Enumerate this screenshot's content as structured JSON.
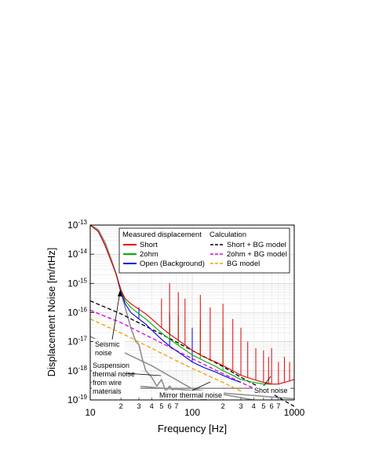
{
  "chart_data": {
    "type": "line",
    "xlabel": "Frequency [Hz]",
    "ylabel": "Displacement Noise [m/rtHz]",
    "x_scale": "log",
    "y_scale": "log",
    "xlim": [
      10,
      1000
    ],
    "ylim": [
      1e-19,
      1e-13
    ],
    "grid": true,
    "x_ticks_major": [
      {
        "value": 10,
        "label": "10"
      },
      {
        "value": 100,
        "label": "100"
      },
      {
        "value": 1000,
        "label": "1000"
      }
    ],
    "x_ticks_minor": [
      {
        "value": 20,
        "label": "2"
      },
      {
        "value": 30,
        "label": "3"
      },
      {
        "value": 40,
        "label": "4"
      },
      {
        "value": 50,
        "label": "5"
      },
      {
        "value": 60,
        "label": "6"
      },
      {
        "value": 70,
        "label": "7"
      },
      {
        "value": 200,
        "label": "2"
      },
      {
        "value": 300,
        "label": "3"
      },
      {
        "value": 400,
        "label": "4"
      },
      {
        "value": 500,
        "label": "5"
      },
      {
        "value": 600,
        "label": "6"
      },
      {
        "value": 700,
        "label": "7"
      }
    ],
    "y_ticks": [
      {
        "exp": -19,
        "base": "10",
        "sup": "-19"
      },
      {
        "exp": -18,
        "base": "10",
        "sup": "-18"
      },
      {
        "exp": -17,
        "base": "10",
        "sup": "-17"
      },
      {
        "exp": -16,
        "base": "10",
        "sup": "-16"
      },
      {
        "exp": -15,
        "base": "10",
        "sup": "-15"
      },
      {
        "exp": -14,
        "base": "10",
        "sup": "-14"
      },
      {
        "exp": -13,
        "base": "10",
        "sup": "-13"
      }
    ],
    "legend": {
      "placement": "top-right",
      "measured_title": "Measured displacement",
      "calc_title": "Calculation",
      "measured": [
        {
          "name": "Short",
          "color": "#e00000",
          "style": "solid"
        },
        {
          "name": "2ohm",
          "color": "#00b000",
          "style": "solid"
        },
        {
          "name": "Open (Background)",
          "color": "#0000e0",
          "style": "solid"
        }
      ],
      "calc": [
        {
          "name": "Short + BG model",
          "color": "#000000",
          "style": "dashed"
        },
        {
          "name": "2ohm + BG model",
          "color": "#e000e0",
          "style": "dashed"
        },
        {
          "name": "BG model",
          "color": "#f0a000",
          "style": "dashed"
        }
      ]
    },
    "series": [
      {
        "name": "Short",
        "kind": "measured",
        "color": "#e00000",
        "x": [
          10,
          12,
          14,
          16,
          18,
          20,
          22,
          25,
          30,
          35,
          40,
          50,
          60,
          80,
          100,
          130,
          170,
          200,
          250,
          300,
          400,
          500,
          600,
          700,
          800,
          1000
        ],
        "y": [
          1e-13,
          6e-14,
          2e-14,
          6e-15,
          2e-15,
          6e-16,
          3e-16,
          2e-16,
          1.3e-16,
          9e-17,
          6e-17,
          3e-17,
          1.8e-17,
          9e-18,
          5e-18,
          3e-18,
          2e-18,
          1.5e-18,
          1e-18,
          7e-19,
          5e-19,
          4e-19,
          3.5e-19,
          3.5e-19,
          4e-19,
          5e-19
        ],
        "peaks": [
          {
            "x": 50,
            "y": 3e-16
          },
          {
            "x": 60,
            "y": 1e-15
          },
          {
            "x": 73,
            "y": 5e-16
          },
          {
            "x": 85,
            "y": 3e-16
          },
          {
            "x": 120,
            "y": 4e-16
          },
          {
            "x": 150,
            "y": 1.5e-16
          },
          {
            "x": 200,
            "y": 2e-16
          },
          {
            "x": 250,
            "y": 6e-17
          },
          {
            "x": 300,
            "y": 3e-17
          },
          {
            "x": 350,
            "y": 1e-17
          },
          {
            "x": 420,
            "y": 6e-18
          },
          {
            "x": 500,
            "y": 5e-18
          },
          {
            "x": 560,
            "y": 3e-18
          },
          {
            "x": 600,
            "y": 6e-18
          },
          {
            "x": 700,
            "y": 2e-18
          },
          {
            "x": 800,
            "y": 3e-18
          },
          {
            "x": 900,
            "y": 2e-18
          }
        ]
      },
      {
        "name": "2ohm",
        "kind": "measured",
        "color": "#00b000",
        "x": [
          10,
          12,
          14,
          16,
          18,
          20,
          22,
          25,
          30,
          35,
          40,
          50,
          60,
          80,
          100,
          130,
          170,
          200,
          250,
          300,
          400,
          500,
          600
        ],
        "y": [
          1e-13,
          6e-14,
          2e-14,
          6e-15,
          2e-15,
          6e-16,
          2.5e-16,
          1.5e-16,
          9e-17,
          6e-17,
          4e-17,
          2e-17,
          1.2e-17,
          6e-18,
          3.5e-18,
          2.2e-18,
          1.4e-18,
          1e-18,
          7e-19,
          5e-19,
          4e-19,
          3.5e-19,
          3.5e-19
        ],
        "peaks": [
          {
            "x": 60,
            "y": 1e-16
          },
          {
            "x": 73,
            "y": 8e-17
          },
          {
            "x": 120,
            "y": 6e-17
          },
          {
            "x": 200,
            "y": 3e-17
          }
        ]
      },
      {
        "name": "Open (Background)",
        "kind": "measured",
        "color": "#0000e0",
        "x": [
          10,
          12,
          14,
          16,
          18,
          20,
          22,
          25,
          30,
          35,
          40,
          50,
          60,
          80,
          100,
          130,
          170,
          200,
          250,
          300
        ],
        "y": [
          1e-13,
          6e-14,
          2e-14,
          6e-15,
          2e-15,
          5e-16,
          2e-16,
          1e-16,
          6e-17,
          4e-17,
          2.5e-17,
          1.2e-17,
          7e-18,
          3.5e-18,
          2e-18,
          1.3e-18,
          9e-19,
          7e-19,
          5e-19,
          4e-19
        ],
        "peaks": [
          {
            "x": 30,
            "y": 1.5e-16
          },
          {
            "x": 60,
            "y": 8e-17
          },
          {
            "x": 100,
            "y": 3e-17
          }
        ]
      },
      {
        "name": "Short + BG model",
        "kind": "calc",
        "color": "#000000",
        "dash": "5,3",
        "x": [
          10,
          20,
          50,
          100,
          200,
          300,
          400,
          500,
          1000
        ],
        "y": [
          2.5e-16,
          9e-17,
          1.8e-17,
          5e-18,
          1.4e-18,
          6e-19,
          3.5e-19,
          2.4e-19,
          6e-20
        ]
      },
      {
        "name": "2ohm + BG model",
        "kind": "calc",
        "color": "#e000e0",
        "dash": "5,3",
        "x": [
          10,
          20,
          50,
          100,
          200,
          300,
          400
        ],
        "y": [
          1.2e-16,
          4.5e-17,
          9e-18,
          2.6e-18,
          8e-19,
          4e-19,
          2.5e-19
        ]
      },
      {
        "name": "BG model",
        "kind": "calc",
        "color": "#f0a000",
        "dash": "5,3",
        "x": [
          10,
          20,
          50,
          100,
          200,
          300
        ],
        "y": [
          6e-17,
          2e-17,
          4e-18,
          1.2e-18,
          4e-19,
          2e-19
        ]
      },
      {
        "name": "Seismic noise",
        "kind": "component",
        "color": "#909090",
        "x": [
          10,
          12,
          14,
          16,
          18,
          20,
          22,
          25,
          28,
          30,
          32,
          35,
          40,
          45,
          50,
          55,
          60,
          70,
          80,
          90,
          100,
          120,
          140
        ],
        "y": [
          1e-13,
          7e-14,
          2.5e-14,
          7e-15,
          2e-15,
          5e-16,
          1.5e-16,
          3e-17,
          1e-17,
          8e-18,
          3e-18,
          1e-18,
          6e-19,
          3e-19,
          5e-19,
          2e-19,
          3e-19,
          1.5e-19,
          2e-19,
          1.2e-19,
          1.5e-19,
          1.1e-19,
          1e-19
        ]
      },
      {
        "name": "Suspension thermal noise",
        "kind": "component",
        "color": "#909090",
        "x": [
          10,
          40,
          100,
          400
        ],
        "y": [
          1.5e-17,
          1.5e-18,
          2.4e-19,
          1e-19
        ]
      },
      {
        "name": "Mirror thermal noise",
        "kind": "component",
        "color": "#909090",
        "x": [
          10,
          1000
        ],
        "y": [
          4e-19,
          1.1e-19
        ]
      },
      {
        "name": "Shot noise",
        "kind": "component",
        "color": "#909090",
        "x": [
          10,
          1000
        ],
        "y": [
          2.5e-19,
          2.5e-19
        ]
      }
    ],
    "annotations": [
      {
        "text": "Seismic",
        "line": 1
      },
      {
        "text": "noise",
        "line": 2
      },
      {
        "text": "Suspension",
        "line": 1
      },
      {
        "text": "thermal noise",
        "line": 2
      },
      {
        "text": "from wire",
        "line": 3
      },
      {
        "text": "materials",
        "line": 4
      },
      {
        "text": "Mirror thermal noise",
        "line": 1
      },
      {
        "text": "Shot noise",
        "line": 1
      }
    ]
  }
}
